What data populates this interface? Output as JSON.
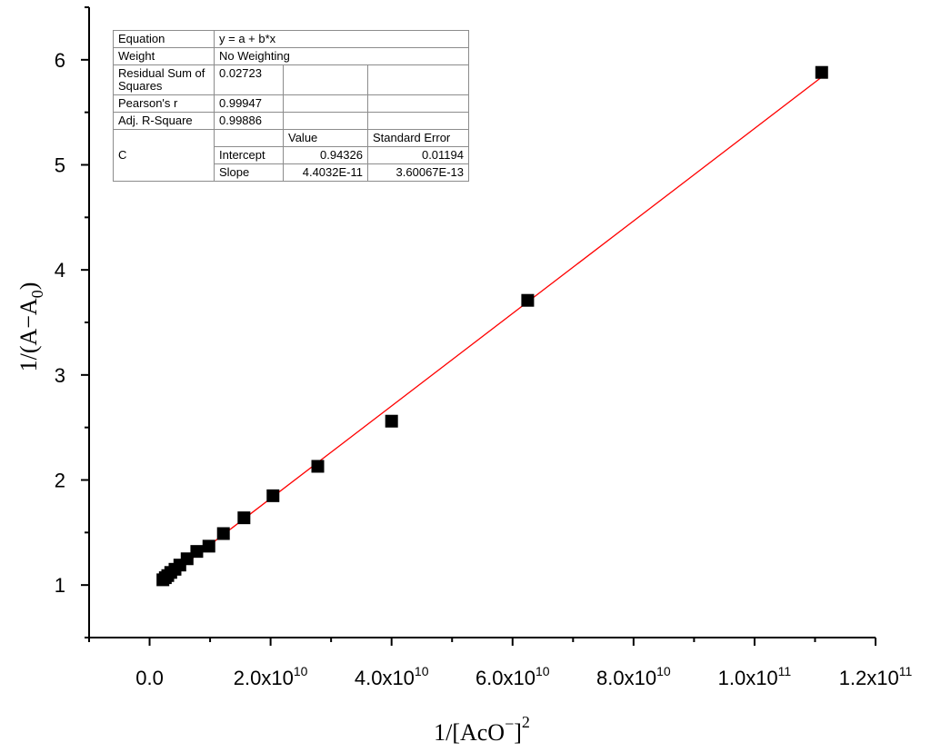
{
  "chart_data": {
    "type": "scatter",
    "xlabel": {
      "main": "1/[AcO",
      "sup_charge": "−",
      "close": "]",
      "sup_power": "2"
    },
    "ylabel": {
      "main": "1/(A−A",
      "sub": "0",
      "close": ")"
    },
    "xlim": [
      -10000000000.0,
      120000000000.0
    ],
    "ylim": [
      0.5,
      6.5
    ],
    "x_ticks": [
      {
        "value": 0,
        "mantissa": "0.0",
        "exp": ""
      },
      {
        "value": 20000000000.0,
        "mantissa": "2.0x10",
        "exp": "10"
      },
      {
        "value": 40000000000.0,
        "mantissa": "4.0x10",
        "exp": "10"
      },
      {
        "value": 60000000000.0,
        "mantissa": "6.0x10",
        "exp": "10"
      },
      {
        "value": 80000000000.0,
        "mantissa": "8.0x10",
        "exp": "10"
      },
      {
        "value": 100000000000.0,
        "mantissa": "1.0x10",
        "exp": "11"
      },
      {
        "value": 120000000000.0,
        "mantissa": "1.2x10",
        "exp": "11"
      }
    ],
    "y_ticks": [
      1,
      2,
      3,
      4,
      5,
      6
    ],
    "grid": false,
    "points": [
      {
        "x": 2200000000.0,
        "y": 1.05
      },
      {
        "x": 2600000000.0,
        "y": 1.07
      },
      {
        "x": 3000000000.0,
        "y": 1.09
      },
      {
        "x": 3500000000.0,
        "y": 1.12
      },
      {
        "x": 4200000000.0,
        "y": 1.15
      },
      {
        "x": 5000000000.0,
        "y": 1.19
      },
      {
        "x": 6200000000.0,
        "y": 1.25
      },
      {
        "x": 7800000000.0,
        "y": 1.32
      },
      {
        "x": 9800000000.0,
        "y": 1.37
      },
      {
        "x": 12200000000.0,
        "y": 1.49
      },
      {
        "x": 15600000000.0,
        "y": 1.64
      },
      {
        "x": 20400000000.0,
        "y": 1.85
      },
      {
        "x": 27800000000.0,
        "y": 2.13
      },
      {
        "x": 40000000000.0,
        "y": 2.56
      },
      {
        "x": 62500000000.0,
        "y": 3.71
      },
      {
        "x": 111100000000.0,
        "y": 5.88
      }
    ],
    "fit": {
      "intercept": 0.94326,
      "slope": 4.4032e-11,
      "x_range": [
        2200000000.0,
        111100000000.0
      ],
      "color": "#ff0000"
    },
    "marker_color": "#000000",
    "axis_color": "#000000"
  },
  "fit_table": {
    "equation_label": "Equation",
    "equation_value": "y = a + b*x",
    "weight_label": "Weight",
    "weight_value": "No Weighting",
    "rss_label": "Residual Sum of Squares",
    "rss_value": "0.02723",
    "pearson_label": "Pearson's r",
    "pearson_value": "0.99947",
    "adjr_label": "Adj. R-Square",
    "adjr_value": "0.99886",
    "value_header": "Value",
    "stderr_header": "Standard Error",
    "group_label": "C",
    "intercept_label": "Intercept",
    "intercept_value": "0.94326",
    "intercept_error": "0.01194",
    "slope_label": "Slope",
    "slope_value": "4.4032E-11",
    "slope_error": "3.60067E-13"
  }
}
